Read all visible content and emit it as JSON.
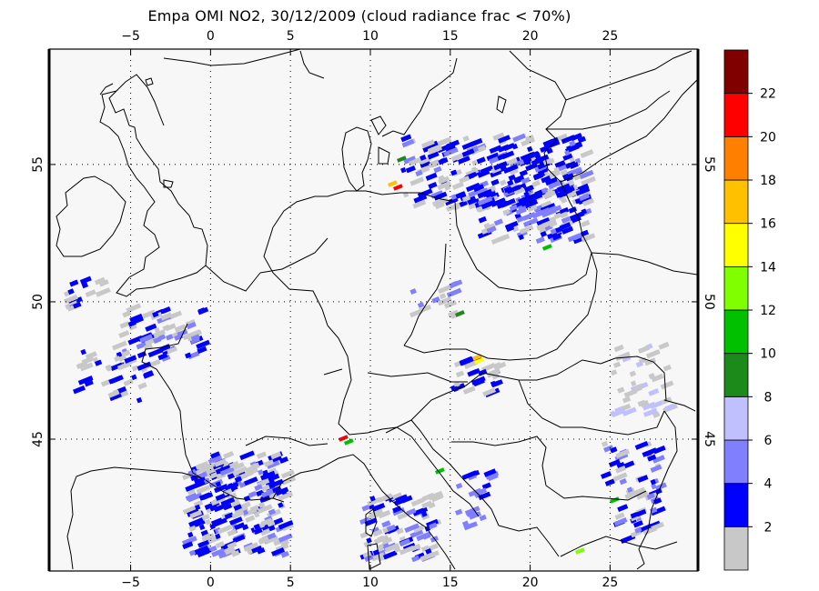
{
  "title": "Empa OMI NO2, 30/12/2009 (cloud radiance frac < 70%)",
  "map": {
    "lon_ticks": [
      -5,
      0,
      5,
      10,
      15,
      20,
      25
    ],
    "lat_ticks": [
      45,
      50,
      55
    ],
    "lon_range": [
      -10.1,
      30.5
    ],
    "lat_range": [
      40.2,
      59.2
    ],
    "grid": "dotted",
    "coastline_color": "#000000"
  },
  "colorbar": {
    "labels": [
      "2",
      "4",
      "6",
      "8",
      "10",
      "12",
      "14",
      "16",
      "18",
      "20",
      "22"
    ],
    "colors": [
      "#c8c8c8",
      "#0000ff",
      "#8080ff",
      "#c0c0ff",
      "#1b8a1b",
      "#00c000",
      "#80ff00",
      "#ffff00",
      "#ffc000",
      "#ff8000",
      "#ff0000",
      "#800000"
    ]
  },
  "colors": {
    "background": "#ffffff",
    "map_fill": "#f7f7f7",
    "gray_pixel": "#c8c8c8",
    "blue_pixel": "#0000ff"
  }
}
